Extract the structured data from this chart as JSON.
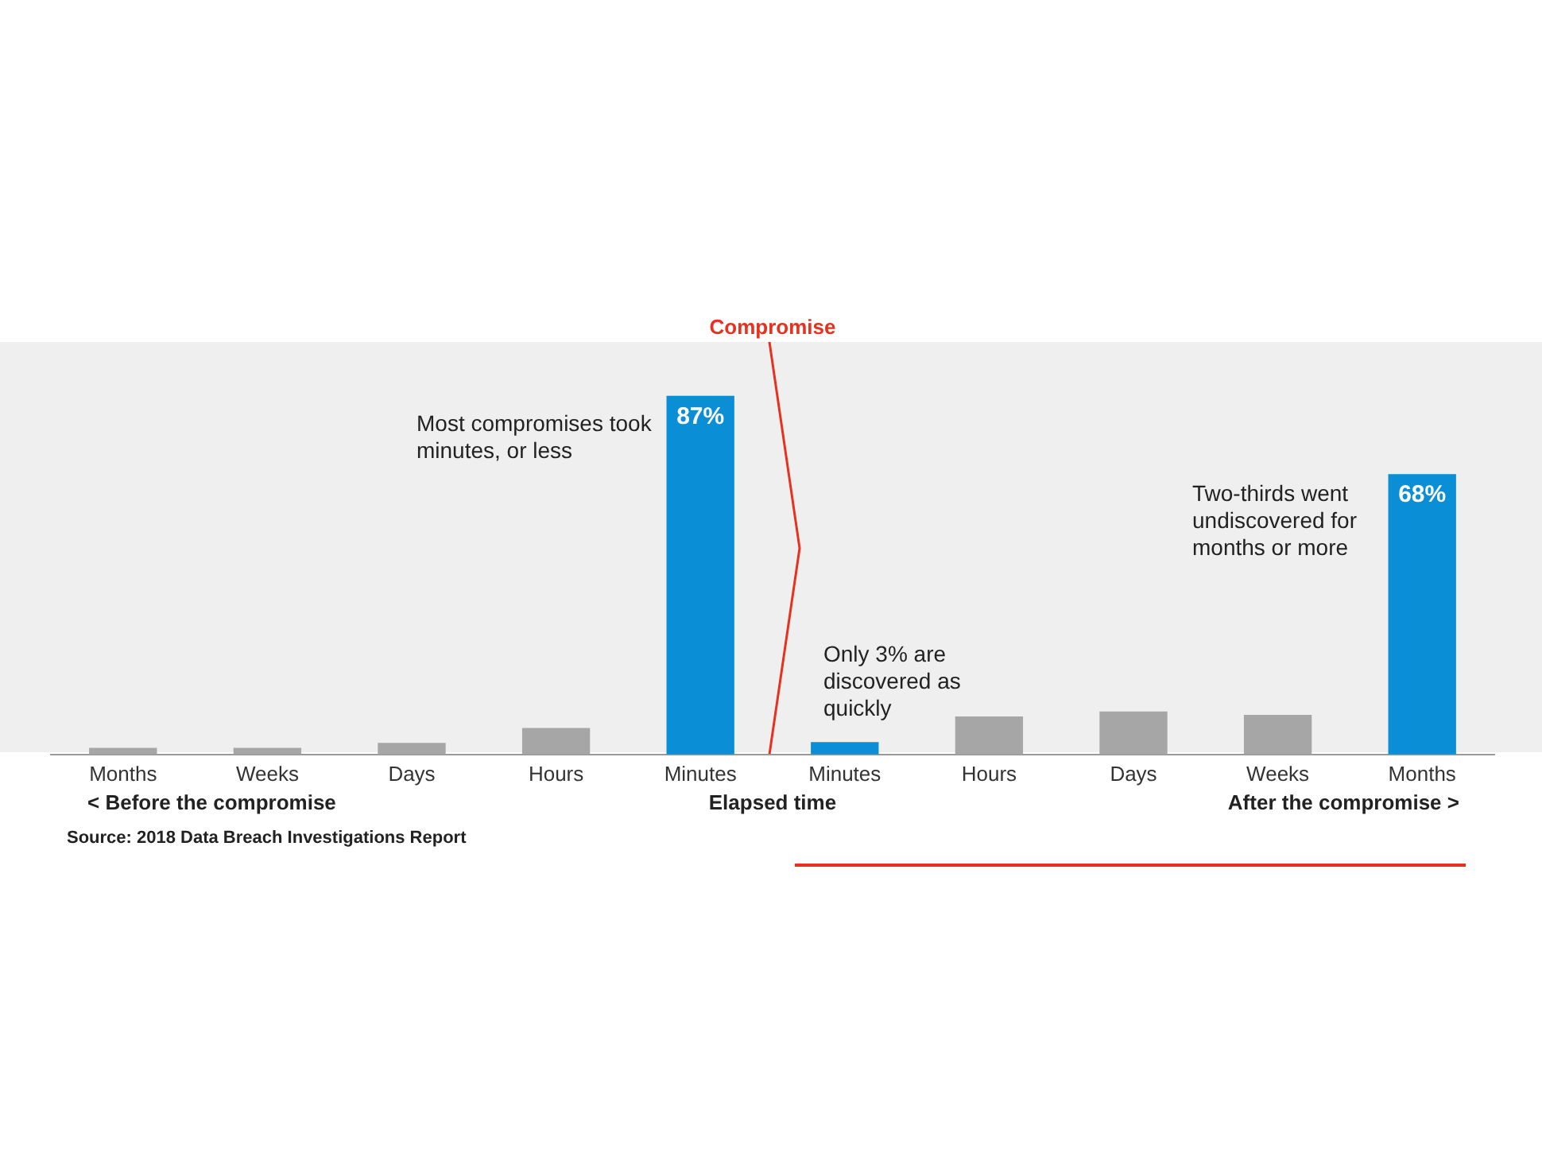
{
  "chart_data": {
    "type": "bar",
    "categories": [
      "Months",
      "Weeks",
      "Days",
      "Hours",
      "Minutes",
      "Minutes",
      "Hours",
      "Days",
      "Weeks",
      "Months"
    ],
    "values": [
      1.6,
      1.6,
      2.8,
      6.4,
      87,
      3,
      9.2,
      10.4,
      9.6,
      68
    ],
    "colors": [
      "#a6a6a6",
      "#a6a6a6",
      "#a6a6a6",
      "#a6a6a6",
      "#0a8fd6",
      "#0a8fd6",
      "#a6a6a6",
      "#a6a6a6",
      "#a6a6a6",
      "#0a8fd6"
    ],
    "value_labels": [
      null,
      null,
      null,
      null,
      "87%",
      null,
      null,
      null,
      null,
      "68%"
    ],
    "xlabel": "Elapsed time",
    "annotations": [
      "Compromise",
      "Most compromises took minutes, or less",
      "Only 3% are discovered as quickly",
      "Two-thirds went undiscovered for months or more",
      "< Before the compromise",
      "After the compromise >",
      "Source: 2018 Data Breach Investigations Report"
    ],
    "grid": false,
    "legend": false
  }
}
